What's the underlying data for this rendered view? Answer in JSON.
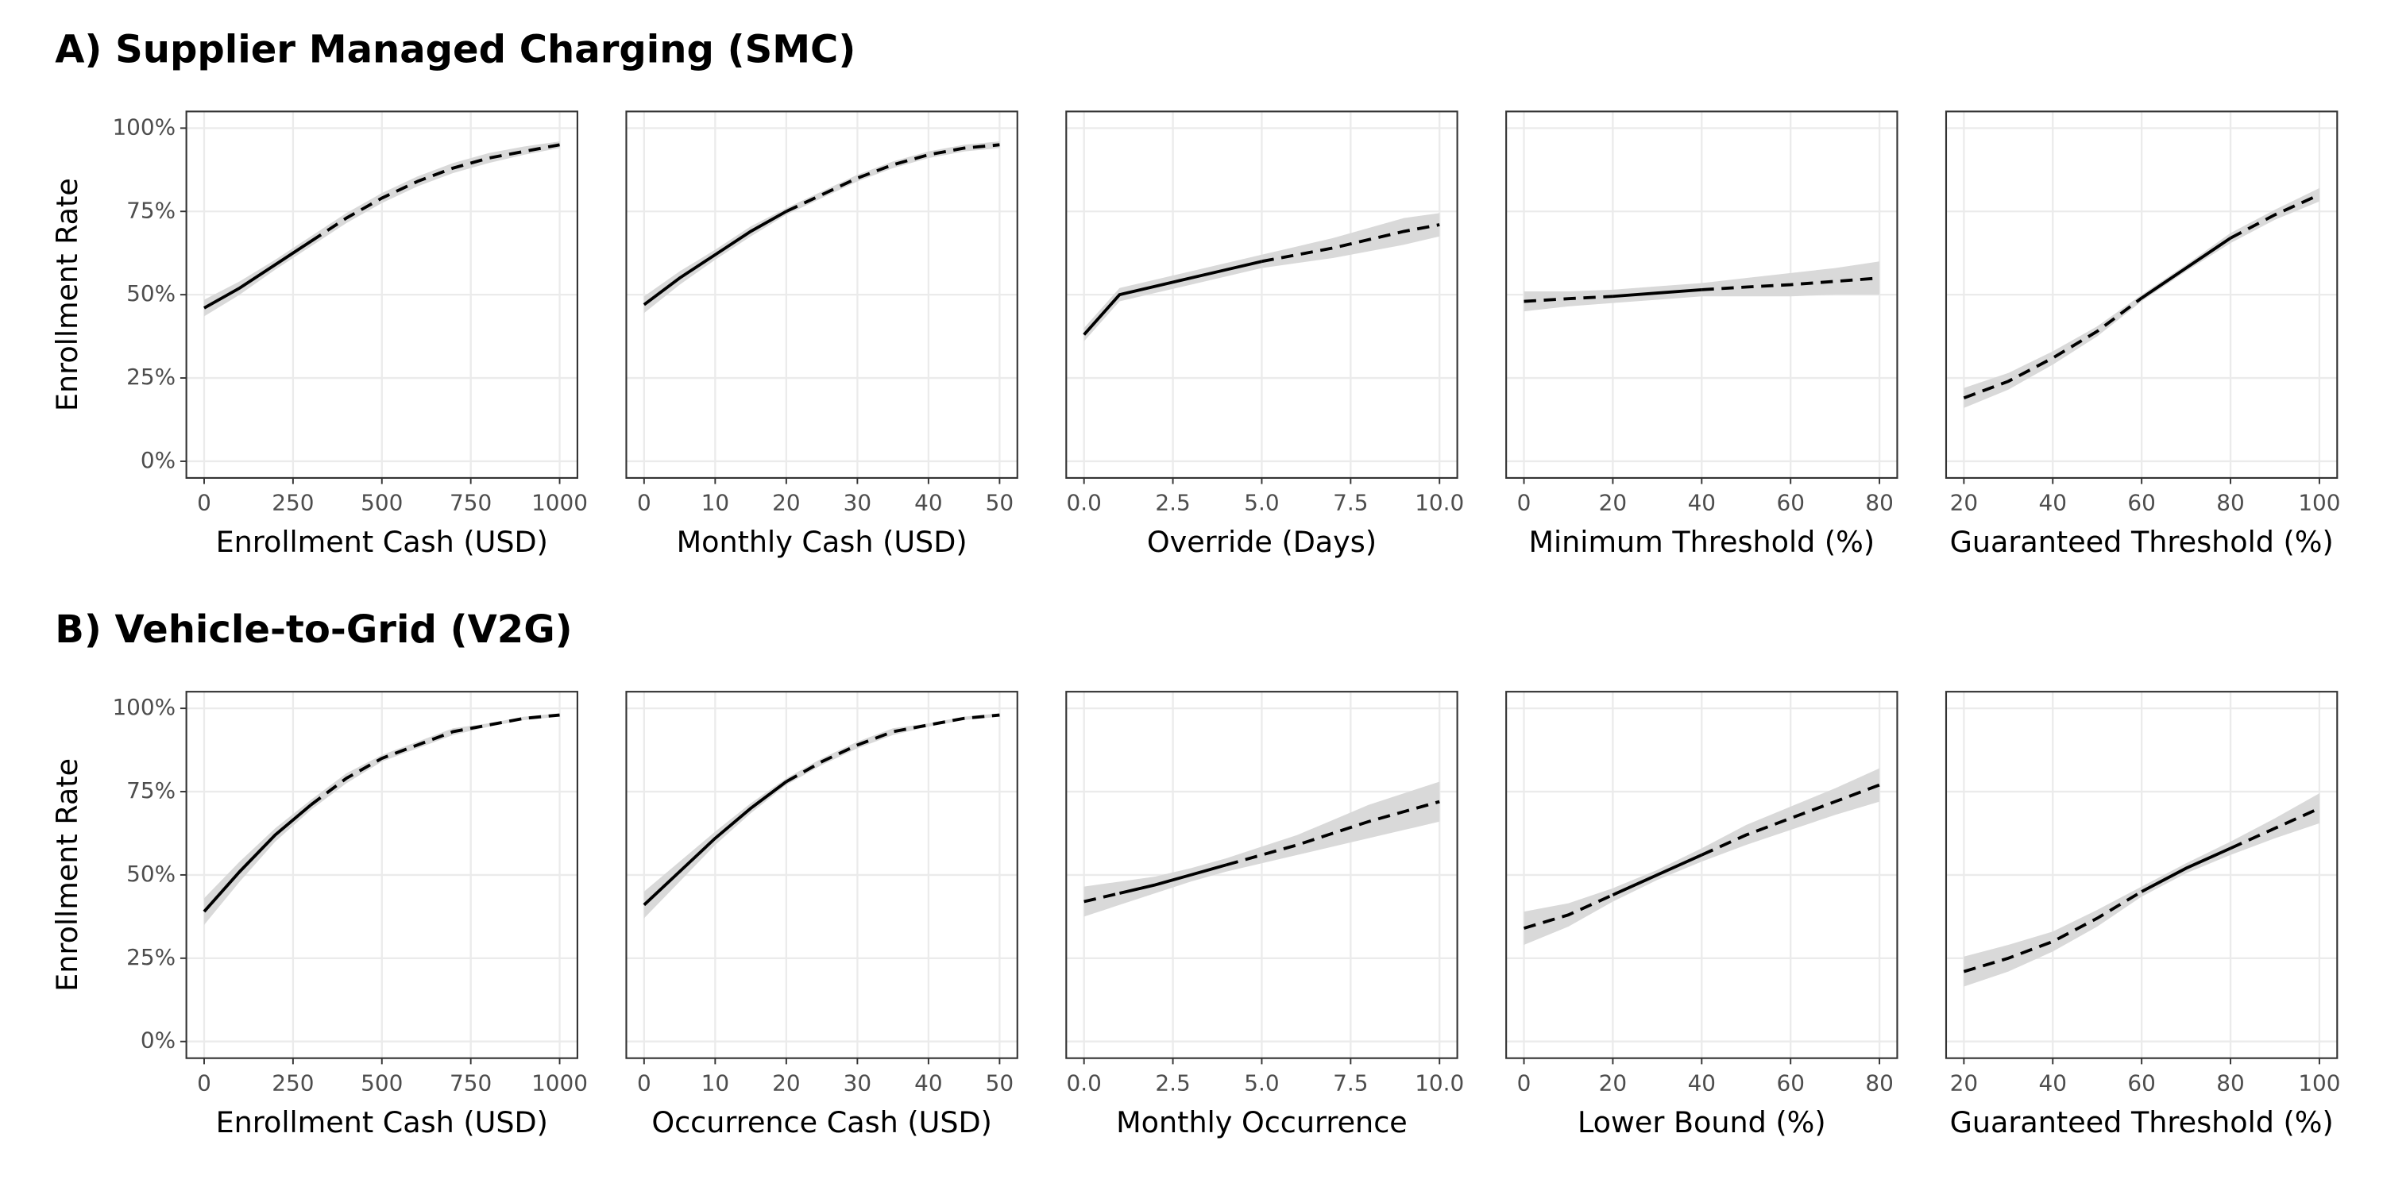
{
  "section_titles": [
    "A) Supplier Managed Charging (SMC)",
    "B) Vehicle-to-Grid (V2G)"
  ],
  "chart_data": [
    {
      "type": "line",
      "ylabel": "Enrollment Rate",
      "xlabel": "Enrollment Cash (USD)",
      "x": [
        0,
        100,
        200,
        300,
        400,
        500,
        600,
        700,
        800,
        900,
        1000
      ],
      "series": [
        {
          "color": "#000000",
          "line_style": "solid",
          "values": [
            46,
            52,
            59,
            66,
            null,
            null,
            null,
            null,
            null,
            null,
            null
          ]
        },
        {
          "color": "#000000",
          "line_style": "dashed",
          "values": [
            null,
            null,
            null,
            66,
            73,
            79,
            84,
            88,
            91,
            93,
            95
          ]
        }
      ],
      "band": {
        "color": "#d9d9d9",
        "lower": [
          43.5,
          50,
          57.5,
          64.5,
          71.5,
          77.5,
          82.5,
          86.5,
          89.5,
          92,
          94
        ],
        "upper": [
          48.5,
          54,
          60.5,
          67.5,
          74.5,
          80.5,
          85.5,
          89.5,
          92.5,
          94.5,
          96
        ]
      },
      "xlim": [
        -50,
        1050
      ],
      "xticks": [
        0,
        250,
        500,
        750,
        1000
      ],
      "ylim": [
        -5,
        105
      ],
      "yticks": [
        {
          "value": 0,
          "label": "0%"
        },
        {
          "value": 25,
          "label": "25%"
        },
        {
          "value": 50,
          "label": "50%"
        },
        {
          "value": 75,
          "label": "75%"
        },
        {
          "value": 100,
          "label": "100%"
        }
      ],
      "grid": true
    },
    {
      "type": "line",
      "xlabel": "Monthly Cash (USD)",
      "x": [
        0,
        5,
        10,
        15,
        20,
        25,
        30,
        35,
        40,
        45,
        50
      ],
      "series": [
        {
          "color": "#000000",
          "line_style": "solid",
          "values": [
            47,
            55,
            62,
            69,
            75,
            null,
            null,
            null,
            null,
            null,
            null
          ]
        },
        {
          "color": "#000000",
          "line_style": "dashed",
          "values": [
            null,
            null,
            null,
            null,
            75,
            80,
            85,
            89,
            92,
            94,
            95
          ]
        }
      ],
      "band": {
        "color": "#d9d9d9",
        "lower": [
          44.5,
          53,
          60.5,
          67.5,
          74,
          79,
          84,
          88,
          91,
          93,
          94
        ],
        "upper": [
          49.5,
          57,
          63.5,
          70.5,
          76,
          81,
          86,
          90,
          93,
          95,
          96
        ]
      },
      "xlim": [
        -2.5,
        52.5
      ],
      "xticks": [
        0,
        10,
        20,
        30,
        40,
        50
      ],
      "ylim": [
        -5,
        105
      ],
      "yticks": [
        0,
        25,
        50,
        75,
        100
      ],
      "grid": true
    },
    {
      "type": "line",
      "xlabel": "Override (Days)",
      "x": [
        0,
        1,
        2,
        3,
        4,
        5,
        6,
        7,
        8,
        9,
        10
      ],
      "series": [
        {
          "color": "#000000",
          "line_style": "solid",
          "values": [
            38,
            50,
            52.5,
            55,
            57.5,
            60,
            null,
            null,
            null,
            null,
            null
          ]
        },
        {
          "color": "#000000",
          "line_style": "dashed",
          "values": [
            null,
            null,
            null,
            null,
            null,
            60,
            62,
            64,
            66.5,
            69,
            71
          ]
        }
      ],
      "band": {
        "color": "#d9d9d9",
        "lower": [
          36,
          48,
          50.5,
          53,
          55.5,
          58,
          59.5,
          61,
          63,
          65,
          67.5
        ],
        "upper": [
          40,
          52,
          54.5,
          57,
          59.5,
          62,
          64.5,
          67,
          70,
          73,
          74.5
        ]
      },
      "xlim": [
        -0.5,
        10.5
      ],
      "xticks": [
        {
          "value": 0,
          "label": "0.0"
        },
        {
          "value": 2.5,
          "label": "2.5"
        },
        {
          "value": 5,
          "label": "5.0"
        },
        {
          "value": 7.5,
          "label": "7.5"
        },
        {
          "value": 10,
          "label": "10.0"
        }
      ],
      "ylim": [
        -5,
        105
      ],
      "yticks": [
        0,
        25,
        50,
        75,
        100
      ],
      "grid": true
    },
    {
      "type": "line",
      "xlabel": "Minimum Threshold (%)",
      "x": [
        0,
        10,
        20,
        30,
        40,
        50,
        60,
        70,
        80
      ],
      "series": [
        {
          "color": "#000000",
          "line_style": "solid",
          "values": [
            null,
            null,
            49.5,
            50.5,
            51.5,
            null,
            null,
            null,
            null
          ]
        },
        {
          "color": "#000000",
          "line_style": "dashed",
          "values": [
            48,
            48.8,
            49.5,
            null,
            51.5,
            52.3,
            53,
            54,
            55
          ]
        }
      ],
      "band": {
        "color": "#d9d9d9",
        "lower": [
          45,
          46.5,
          47.5,
          48.5,
          49.5,
          49.5,
          49.5,
          50,
          50
        ],
        "upper": [
          51,
          51,
          51.5,
          52.5,
          53.5,
          55,
          56.5,
          58,
          60
        ]
      },
      "xlim": [
        -4,
        84
      ],
      "xticks": [
        0,
        20,
        40,
        60,
        80
      ],
      "ylim": [
        -5,
        105
      ],
      "yticks": [
        0,
        25,
        50,
        75,
        100
      ],
      "grid": true
    },
    {
      "type": "line",
      "xlabel": "Guaranteed Threshold (%)",
      "x": [
        20,
        30,
        40,
        50,
        60,
        70,
        80,
        90,
        100
      ],
      "series": [
        {
          "color": "#000000",
          "line_style": "solid",
          "values": [
            null,
            null,
            null,
            null,
            49,
            58,
            67,
            null,
            null
          ]
        },
        {
          "color": "#000000",
          "line_style": "dashed",
          "values": [
            19,
            24,
            31,
            39,
            49,
            null,
            67,
            74,
            80
          ]
        }
      ],
      "band": {
        "color": "#d9d9d9",
        "lower": [
          16,
          21.5,
          29,
          37.5,
          48,
          57,
          65.5,
          72.5,
          78
        ],
        "upper": [
          22,
          26.5,
          33,
          40.5,
          50,
          59,
          68.5,
          75.5,
          82
        ]
      },
      "xlim": [
        16,
        104
      ],
      "xticks": [
        20,
        40,
        60,
        80,
        100
      ],
      "ylim": [
        -5,
        105
      ],
      "yticks": [
        0,
        25,
        50,
        75,
        100
      ],
      "grid": true
    },
    {
      "type": "line",
      "ylabel": "Enrollment Rate",
      "xlabel": "Enrollment Cash (USD)",
      "x": [
        0,
        100,
        200,
        300,
        400,
        500,
        600,
        700,
        800,
        900,
        1000
      ],
      "series": [
        {
          "color": "#000000",
          "line_style": "solid",
          "values": [
            39,
            51,
            62,
            71,
            null,
            null,
            null,
            null,
            null,
            null,
            null
          ]
        },
        {
          "color": "#000000",
          "line_style": "dashed",
          "values": [
            null,
            null,
            null,
            71,
            79,
            85,
            89,
            93,
            95,
            97,
            98
          ]
        }
      ],
      "band": {
        "color": "#d9d9d9",
        "lower": [
          35,
          48,
          60,
          69.5,
          77.5,
          84,
          88,
          92,
          94.5,
          96.5,
          97.5
        ],
        "upper": [
          43,
          54,
          64,
          72.5,
          80.5,
          86,
          90,
          94,
          95.5,
          97.5,
          98.5
        ]
      },
      "xlim": [
        -50,
        1050
      ],
      "xticks": [
        0,
        250,
        500,
        750,
        1000
      ],
      "ylim": [
        -5,
        105
      ],
      "yticks": [
        {
          "value": 0,
          "label": "0%"
        },
        {
          "value": 25,
          "label": "25%"
        },
        {
          "value": 50,
          "label": "50%"
        },
        {
          "value": 75,
          "label": "75%"
        },
        {
          "value": 100,
          "label": "100%"
        }
      ],
      "grid": true
    },
    {
      "type": "line",
      "xlabel": "Occurrence Cash (USD)",
      "x": [
        0,
        5,
        10,
        15,
        20,
        25,
        30,
        35,
        40,
        45,
        50
      ],
      "series": [
        {
          "color": "#000000",
          "line_style": "solid",
          "values": [
            41,
            51,
            61,
            70,
            78,
            null,
            null,
            null,
            null,
            null,
            null
          ]
        },
        {
          "color": "#000000",
          "line_style": "dashed",
          "values": [
            null,
            null,
            null,
            null,
            78,
            84,
            89,
            93,
            95,
            97,
            98
          ]
        }
      ],
      "band": {
        "color": "#d9d9d9",
        "lower": [
          37,
          48,
          59,
          68.5,
          77,
          83,
          88,
          92,
          94.5,
          96.5,
          97.5
        ],
        "upper": [
          45,
          54,
          63,
          71.5,
          79,
          85,
          90,
          94,
          95.5,
          97.5,
          98.5
        ]
      },
      "xlim": [
        -2.5,
        52.5
      ],
      "xticks": [
        0,
        10,
        20,
        30,
        40,
        50
      ],
      "ylim": [
        -5,
        105
      ],
      "yticks": [
        0,
        25,
        50,
        75,
        100
      ],
      "grid": true
    },
    {
      "type": "line",
      "xlabel": "Monthly Occurrence",
      "x": [
        0,
        1,
        2,
        3,
        4,
        5,
        6,
        7,
        8,
        9,
        10
      ],
      "series": [
        {
          "color": "#000000",
          "line_style": "solid",
          "values": [
            null,
            44.5,
            47,
            50,
            53,
            null,
            null,
            null,
            null,
            null,
            null
          ]
        },
        {
          "color": "#000000",
          "line_style": "dashed",
          "values": [
            42,
            44.5,
            null,
            null,
            53,
            56,
            59,
            62.5,
            66,
            69,
            72
          ]
        }
      ],
      "band": {
        "color": "#d9d9d9",
        "lower": [
          37.5,
          41,
          44.5,
          48,
          51,
          53.5,
          56,
          58.5,
          61,
          63.5,
          66
        ],
        "upper": [
          46.5,
          48,
          49.5,
          52,
          55,
          58.5,
          62,
          66.5,
          71,
          74.5,
          78
        ]
      },
      "xlim": [
        -0.5,
        10.5
      ],
      "xticks": [
        {
          "value": 0,
          "label": "0.0"
        },
        {
          "value": 2.5,
          "label": "2.5"
        },
        {
          "value": 5,
          "label": "5.0"
        },
        {
          "value": 7.5,
          "label": "7.5"
        },
        {
          "value": 10,
          "label": "10.0"
        }
      ],
      "ylim": [
        -5,
        105
      ],
      "yticks": [
        0,
        25,
        50,
        75,
        100
      ],
      "grid": true
    },
    {
      "type": "line",
      "xlabel": "Lower Bound (%)",
      "x": [
        0,
        10,
        20,
        30,
        40,
        50,
        60,
        70,
        80
      ],
      "series": [
        {
          "color": "#000000",
          "line_style": "solid",
          "values": [
            null,
            null,
            44,
            50,
            56,
            null,
            null,
            null,
            null
          ]
        },
        {
          "color": "#000000",
          "line_style": "dashed",
          "values": [
            34,
            38,
            44,
            null,
            56,
            62,
            67,
            72,
            77
          ]
        }
      ],
      "band": {
        "color": "#d9d9d9",
        "lower": [
          29,
          34.5,
          42,
          48.5,
          54,
          59,
          63.5,
          68,
          72
        ],
        "upper": [
          39,
          41.5,
          46,
          51.5,
          58,
          65,
          70.5,
          76,
          82
        ]
      },
      "xlim": [
        -4,
        84
      ],
      "xticks": [
        0,
        20,
        40,
        60,
        80
      ],
      "ylim": [
        -5,
        105
      ],
      "yticks": [
        0,
        25,
        50,
        75,
        100
      ],
      "grid": true
    },
    {
      "type": "line",
      "xlabel": "Guaranteed Threshold (%)",
      "x": [
        20,
        30,
        40,
        50,
        60,
        70,
        80,
        90,
        100
      ],
      "series": [
        {
          "color": "#000000",
          "line_style": "solid",
          "values": [
            null,
            null,
            null,
            null,
            45,
            52,
            58,
            null,
            null
          ]
        },
        {
          "color": "#000000",
          "line_style": "dashed",
          "values": [
            21,
            25,
            30,
            37,
            45,
            null,
            58,
            64,
            70
          ]
        }
      ],
      "band": {
        "color": "#d9d9d9",
        "lower": [
          16.5,
          21,
          27,
          34.5,
          43.5,
          50.5,
          56,
          61,
          65.5
        ],
        "upper": [
          25.5,
          29,
          33,
          39.5,
          46.5,
          53.5,
          60,
          67,
          74.5
        ]
      },
      "xlim": [
        16,
        104
      ],
      "xticks": [
        20,
        40,
        60,
        80,
        100
      ],
      "ylim": [
        -5,
        105
      ],
      "yticks": [
        0,
        25,
        50,
        75,
        100
      ],
      "grid": true
    }
  ]
}
